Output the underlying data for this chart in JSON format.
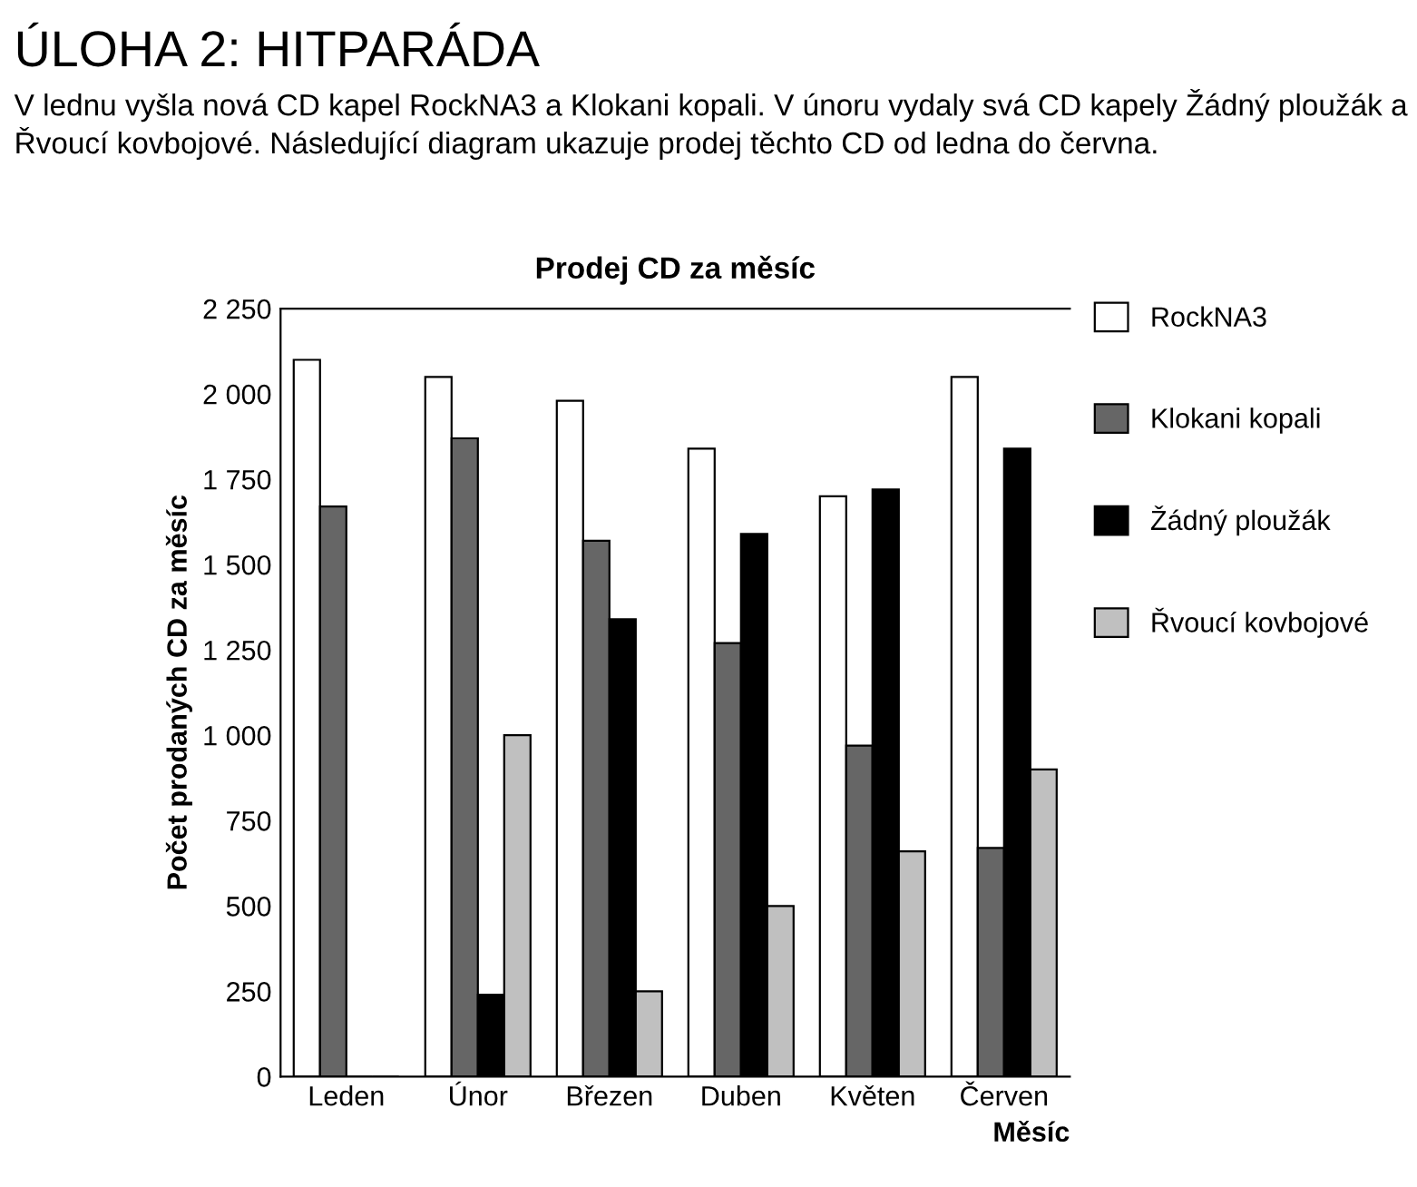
{
  "chart_data": {
    "type": "bar",
    "title": "Prodej CD za měsíc",
    "xlabel": "Měsíc",
    "ylabel": "Počet prodaných CD za měsíc",
    "annotations": [
      "ÚLOHA 2: HITPARÁDA",
      "V lednu vyšla nová CD kapel RockNA3 a Klokani kopali. V únoru vydaly svá CD kapely Žádný ploužák a Řvoucí kovbojové. Následující diagram ukazuje prodej těchto CD od ledna do června."
    ],
    "categories": [
      "Leden",
      "Únor",
      "Březen",
      "Duben",
      "Květen",
      "Červen"
    ],
    "series": [
      {
        "name": "RockNA3",
        "color": "#ffffff",
        "values": [
          2100,
          2050,
          1980,
          1840,
          1700,
          2050
        ]
      },
      {
        "name": "Klokani kopali",
        "color": "#666666",
        "values": [
          1670,
          1870,
          1570,
          1270,
          970,
          670
        ]
      },
      {
        "name": "Žádný ploužák",
        "color": "#000000",
        "values": [
          0,
          240,
          1340,
          1590,
          1720,
          1840
        ]
      },
      {
        "name": "Řvoucí kovbojové",
        "color": "#c0c0c0",
        "values": [
          0,
          1000,
          250,
          500,
          660,
          900
        ]
      }
    ],
    "ylim": [
      0,
      2250
    ],
    "yticks": [
      0,
      250,
      500,
      750,
      {
        "value": 1000,
        "label": "1 000"
      },
      {
        "value": 1250,
        "label": "1 250"
      },
      {
        "value": 1500,
        "label": "1 500"
      },
      {
        "value": 1750,
        "label": "1 750"
      },
      {
        "value": 2000,
        "label": "2 000"
      },
      {
        "value": 2250,
        "label": "2 250"
      }
    ],
    "legend": "right",
    "grid": false
  }
}
